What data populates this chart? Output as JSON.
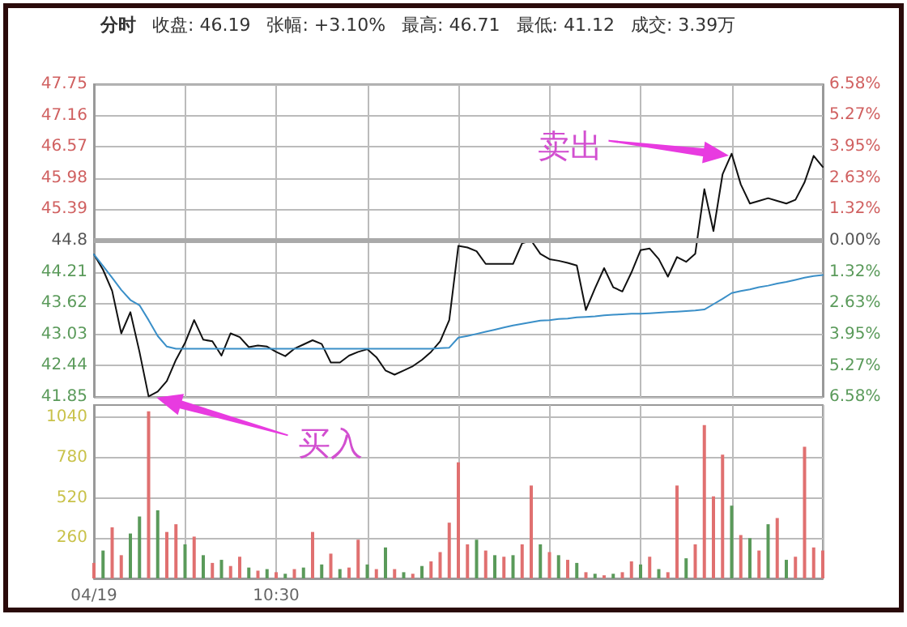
{
  "chart_data": [
    {
      "type": "line",
      "title": "分时",
      "annotations": [
        "收盘: 46.19",
        "张幅: +3.10%",
        "最高: 46.71",
        "最低: 41.12",
        "成交: 3.39万",
        "买入",
        "卖出"
      ],
      "categories": [
        null,
        null,
        null,
        null,
        null,
        null,
        null,
        null,
        null,
        null,
        null,
        null,
        null,
        null,
        null,
        null,
        null,
        null,
        null,
        null,
        null,
        null,
        null,
        null,
        null,
        null,
        null,
        null,
        null,
        null,
        null,
        null,
        null,
        null,
        null,
        null,
        null,
        null,
        null,
        null,
        null,
        null,
        null,
        null,
        null,
        null,
        null,
        null,
        null,
        null,
        null,
        null,
        null,
        null,
        null,
        null,
        null,
        null,
        null,
        null,
        null,
        null,
        null,
        null,
        null,
        null,
        null,
        null,
        null,
        null,
        null,
        null,
        null,
        null,
        null,
        null,
        null,
        null,
        null,
        null,
        null
      ],
      "series": [
        {
          "color": "#111111",
          "values": [
            44.54,
            44.25,
            43.85,
            43.05,
            43.45,
            42.7,
            41.86,
            41.95,
            42.15,
            42.55,
            42.87,
            43.3,
            42.93,
            42.9,
            42.63,
            43.05,
            42.98,
            42.79,
            42.82,
            42.8,
            42.7,
            42.62,
            42.76,
            42.84,
            42.92,
            42.85,
            42.5,
            42.5,
            42.63,
            42.7,
            42.75,
            42.6,
            42.35,
            42.27,
            42.35,
            42.43,
            42.55,
            42.7,
            42.9,
            43.3,
            44.7,
            44.67,
            44.6,
            44.36,
            44.36,
            44.36,
            44.36,
            44.75,
            44.8,
            44.55,
            44.45,
            44.42,
            44.38,
            44.33,
            43.49,
            43.9,
            44.28,
            43.92,
            43.84,
            44.2,
            44.62,
            44.65,
            44.45,
            44.12,
            44.49,
            44.4,
            44.55,
            45.77,
            44.98,
            46.05,
            46.44,
            45.86,
            45.5,
            45.55,
            45.6,
            45.55,
            45.5,
            45.57,
            45.9,
            46.4,
            46.19
          ]
        },
        {
          "color": "#3a8fc8",
          "values": [
            44.54,
            44.32,
            44.1,
            43.87,
            43.68,
            43.58,
            43.3,
            43.0,
            42.8,
            42.76,
            42.76,
            42.76,
            42.76,
            42.76,
            42.76,
            42.76,
            42.76,
            42.76,
            42.76,
            42.76,
            42.76,
            42.76,
            42.76,
            42.76,
            42.76,
            42.76,
            42.76,
            42.76,
            42.76,
            42.76,
            42.76,
            42.76,
            42.76,
            42.76,
            42.76,
            42.76,
            42.76,
            42.76,
            42.77,
            42.78,
            42.97,
            43.0,
            43.04,
            43.08,
            43.12,
            43.16,
            43.2,
            43.23,
            43.26,
            43.29,
            43.3,
            43.32,
            43.33,
            43.35,
            43.36,
            43.37,
            43.39,
            43.4,
            43.41,
            43.42,
            43.42,
            43.43,
            43.44,
            43.45,
            43.46,
            43.47,
            43.48,
            43.5,
            43.6,
            43.7,
            43.81,
            43.85,
            43.88,
            43.92,
            43.95,
            43.99,
            44.02,
            44.06,
            44.1,
            44.13,
            44.15
          ]
        }
      ],
      "ylim": [
        41.85,
        47.75
      ],
      "yticks": [
        41.85,
        42.44,
        43.03,
        43.62,
        44.21,
        44.8,
        45.39,
        45.98,
        46.57,
        47.16,
        47.75
      ],
      "y2lim": [
        -6.58,
        6.58
      ],
      "y2ticks": [
        {
          "value": -6.58,
          "label": "6.58%"
        },
        {
          "value": -5.27,
          "label": "5.27%"
        },
        {
          "value": -3.95,
          "label": "3.95%"
        },
        {
          "value": -2.63,
          "label": "2.63%"
        },
        {
          "value": -1.32,
          "label": "1.32%"
        },
        {
          "value": 0,
          "label": "0.00%"
        },
        {
          "value": 1.32,
          "label": "1.32%"
        },
        {
          "value": 2.63,
          "label": "2.63%"
        },
        {
          "value": 3.95,
          "label": "3.95%"
        },
        {
          "value": 5.27,
          "label": "5.27%"
        },
        {
          "value": 6.58,
          "label": "6.58%"
        }
      ],
      "ref_lines": [
        {
          "axis": "y",
          "value": 44.8,
          "color": "#aaaaaa"
        }
      ],
      "grid": true,
      "line_style": "solid",
      "tick_labels": "y"
    },
    {
      "type": "bar",
      "categories": [
        "04/19",
        null,
        null,
        null,
        null,
        null,
        null,
        null,
        null,
        null,
        null,
        null,
        null,
        null,
        null,
        null,
        null,
        null,
        null,
        null,
        "10:30",
        null,
        null,
        null,
        null,
        null,
        null,
        null,
        null,
        null,
        null,
        null,
        null,
        null,
        null,
        null,
        null,
        null,
        null,
        null,
        null,
        null,
        null,
        null,
        null,
        null,
        null,
        null,
        null,
        null,
        null,
        null,
        null,
        null,
        null,
        null,
        null,
        null,
        null,
        null,
        null,
        null,
        null,
        null,
        null,
        null,
        null,
        null,
        null,
        null,
        null,
        null,
        null,
        null,
        null,
        null,
        null,
        null,
        null,
        null,
        null
      ],
      "values": [
        100,
        180,
        330,
        150,
        290,
        400,
        1080,
        440,
        300,
        350,
        220,
        270,
        150,
        100,
        120,
        80,
        140,
        70,
        50,
        60,
        40,
        30,
        60,
        70,
        300,
        90,
        160,
        60,
        70,
        250,
        90,
        60,
        200,
        60,
        40,
        30,
        80,
        110,
        170,
        360,
        750,
        220,
        250,
        180,
        150,
        140,
        150,
        220,
        600,
        220,
        170,
        150,
        120,
        100,
        40,
        30,
        20,
        30,
        40,
        110,
        90,
        140,
        60,
        40,
        600,
        130,
        220,
        990,
        530,
        800,
        470,
        280,
        260,
        180,
        350,
        390,
        120,
        140,
        850,
        200,
        180
      ],
      "colors": [
        "#e07070",
        "#5a9a5a",
        "#e07070",
        "#e07070",
        "#5a9a5a",
        "#5a9a5a",
        "#e07070",
        "#5a9a5a",
        "#e07070",
        "#e07070",
        "#5a9a5a",
        "#e07070",
        "#5a9a5a",
        "#e07070",
        "#5a9a5a",
        "#e07070",
        "#e07070",
        "#5a9a5a",
        "#e07070",
        "#5a9a5a",
        "#e07070",
        "#5a9a5a",
        "#e07070",
        "#5a9a5a",
        "#e07070",
        "#5a9a5a",
        "#e07070",
        "#5a9a5a",
        "#e07070",
        "#e07070",
        "#5a9a5a",
        "#e07070",
        "#5a9a5a",
        "#e07070",
        "#5a9a5a",
        "#e07070",
        "#5a9a5a",
        "#e07070",
        "#e07070",
        "#e07070",
        "#e07070",
        "#e07070",
        "#5a9a5a",
        "#e07070",
        "#5a9a5a",
        "#e07070",
        "#5a9a5a",
        "#e07070",
        "#e07070",
        "#5a9a5a",
        "#e07070",
        "#5a9a5a",
        "#e07070",
        "#5a9a5a",
        "#e07070",
        "#5a9a5a",
        "#e07070",
        "#5a9a5a",
        "#e07070",
        "#e07070",
        "#5a9a5a",
        "#e07070",
        "#5a9a5a",
        "#e07070",
        "#e07070",
        "#5a9a5a",
        "#e07070",
        "#e07070",
        "#e07070",
        "#e07070",
        "#5a9a5a",
        "#e07070",
        "#5a9a5a",
        "#e07070",
        "#5a9a5a",
        "#e07070",
        "#5a9a5a",
        "#e07070",
        "#e07070",
        "#e07070",
        "#e07070"
      ],
      "ylim": [
        0,
        1120
      ],
      "yticks": [
        {
          "value": 0,
          "label": null
        },
        260,
        520,
        780,
        1040
      ],
      "grid": true
    }
  ]
}
